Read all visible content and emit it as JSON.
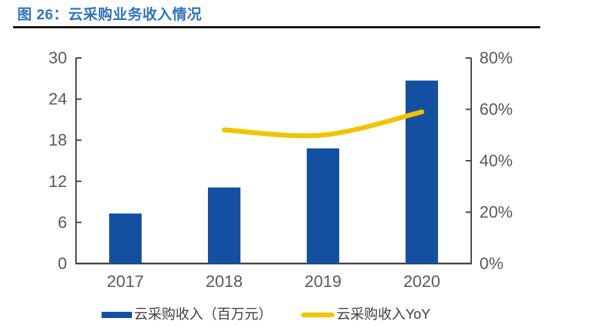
{
  "header": {
    "title": "图 26：云采购业务收入情况"
  },
  "colors": {
    "title": "#2e73c0",
    "separator": "#000000",
    "bar": "#1450a2",
    "line": "#f0c400",
    "axis": "#3f3f3f",
    "tick_label": "#595959"
  },
  "chart_data": {
    "type": "bar",
    "title": "云采购业务收入情况",
    "categories": [
      "2017",
      "2018",
      "2019",
      "2020"
    ],
    "series": [
      {
        "name": "云采购收入（百万元）",
        "type": "bar",
        "axis": "left",
        "values": [
          7.3,
          11.1,
          16.8,
          26.7
        ]
      },
      {
        "name": "云采购收入YoY",
        "type": "line",
        "axis": "right",
        "unit": "%",
        "values": [
          null,
          52,
          50,
          59
        ]
      }
    ],
    "left_axis": {
      "min": 0,
      "max": 30,
      "ticks": [
        0,
        6,
        12,
        18,
        24,
        30
      ],
      "tick_labels": [
        "0",
        "6",
        "12",
        "18",
        "24",
        "30"
      ]
    },
    "right_axis": {
      "min": 0,
      "max": 80,
      "ticks": [
        0,
        20,
        40,
        60,
        80
      ],
      "tick_labels": [
        "0%",
        "20%",
        "40%",
        "60%",
        "80%"
      ]
    },
    "grid": false,
    "legend_position": "bottom"
  },
  "legend": {
    "items": [
      {
        "label": "云采购收入（百万元）",
        "swatch": "bar"
      },
      {
        "label": "云采购收入YoY",
        "swatch": "line"
      }
    ]
  }
}
